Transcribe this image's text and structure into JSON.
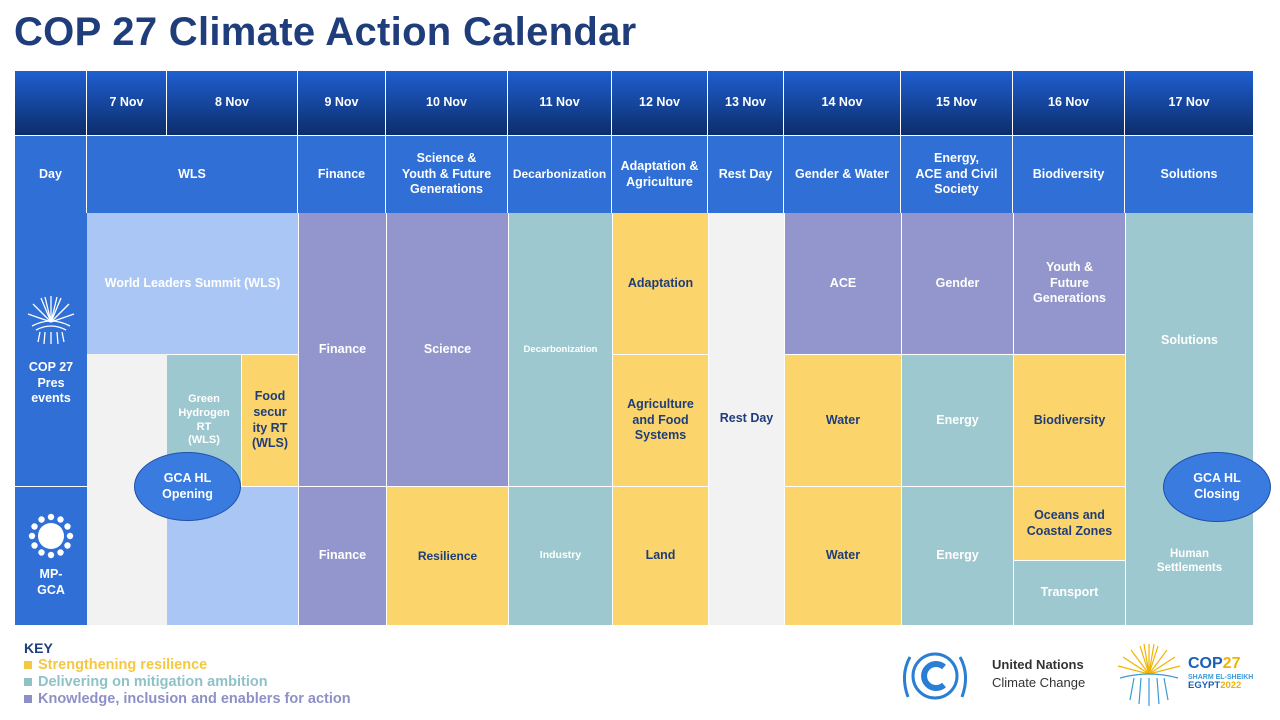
{
  "title": "COP 27 Climate Action Calendar",
  "colors": {
    "resilience": "#fbd56b",
    "mitigation": "#9ec8cf",
    "knowledge": "#9396cc",
    "wls": "#a9c6f5",
    "header_dark": "#0c2d6b",
    "header_blue": "#2f6fd6"
  },
  "dates": [
    "7 Nov",
    "8 Nov",
    "9 Nov",
    "10 Nov",
    "11 Nov",
    "12 Nov",
    "13 Nov",
    "14 Nov",
    "15 Nov",
    "16 Nov",
    "17 Nov"
  ],
  "themes": {
    "day": "Day",
    "wls": "WLS",
    "nov9": "Finance",
    "nov10": "Science &\nYouth & Future\nGenerations",
    "nov11": "Decarbonization",
    "nov12": "Adaptation &\nAgriculture",
    "nov13": "Rest Day",
    "nov14": "Gender & Water",
    "nov15": "Energy,\nACE and Civil\nSociety",
    "nov16": "Biodiversity",
    "nov17": "Solutions"
  },
  "rows": {
    "pres": "COP 27\nPres\nevents",
    "mpgca": "MP-\nGCA"
  },
  "cells": {
    "wls_summit": "World Leaders Summit (WLS)",
    "green_hydrogen": "Green\nHydrogen\nRT\n(WLS)",
    "food_security": "Food\nsecur\nity RT\n(WLS)",
    "finance_pres": "Finance",
    "finance_mp": "Finance",
    "science": "Science",
    "resilience": "Resilience",
    "decarbonization": "Decarbonization",
    "industry": "Industry",
    "adaptation": "Adaptation",
    "agriculture": "Agriculture\nand Food\nSystems",
    "land": "Land",
    "rest_day": "Rest Day",
    "ace": "ACE",
    "water_pres": "Water",
    "water_mp": "Water",
    "gender": "Gender",
    "energy_pres": "Energy",
    "energy_mp": "Energy",
    "youth": "Youth &\nFuture\nGenerations",
    "biodiversity": "Biodiversity",
    "oceans": "Oceans and\nCoastal Zones",
    "transport": "Transport",
    "solutions": "Solutions",
    "human_settlements": "Human\nSettlements"
  },
  "ovals": {
    "opening": "GCA HL\nOpening",
    "closing": "GCA HL\nClosing"
  },
  "key": {
    "head": "KEY",
    "items": [
      {
        "label": "Strengthening resilience",
        "color": "#f5c842"
      },
      {
        "label": "Delivering on mitigation ambition",
        "color": "#8fc1c9"
      },
      {
        "label": "Knowledge, inclusion and enablers for action",
        "color": "#8d90c6"
      }
    ]
  },
  "logos": {
    "un_line1": "United Nations",
    "un_line2": "Climate Change",
    "cop_main": "COP",
    "cop_num": "27",
    "cop_place": "SHARM EL-SHEIKH",
    "cop_country": "EGYPT",
    "cop_year": "2022"
  }
}
